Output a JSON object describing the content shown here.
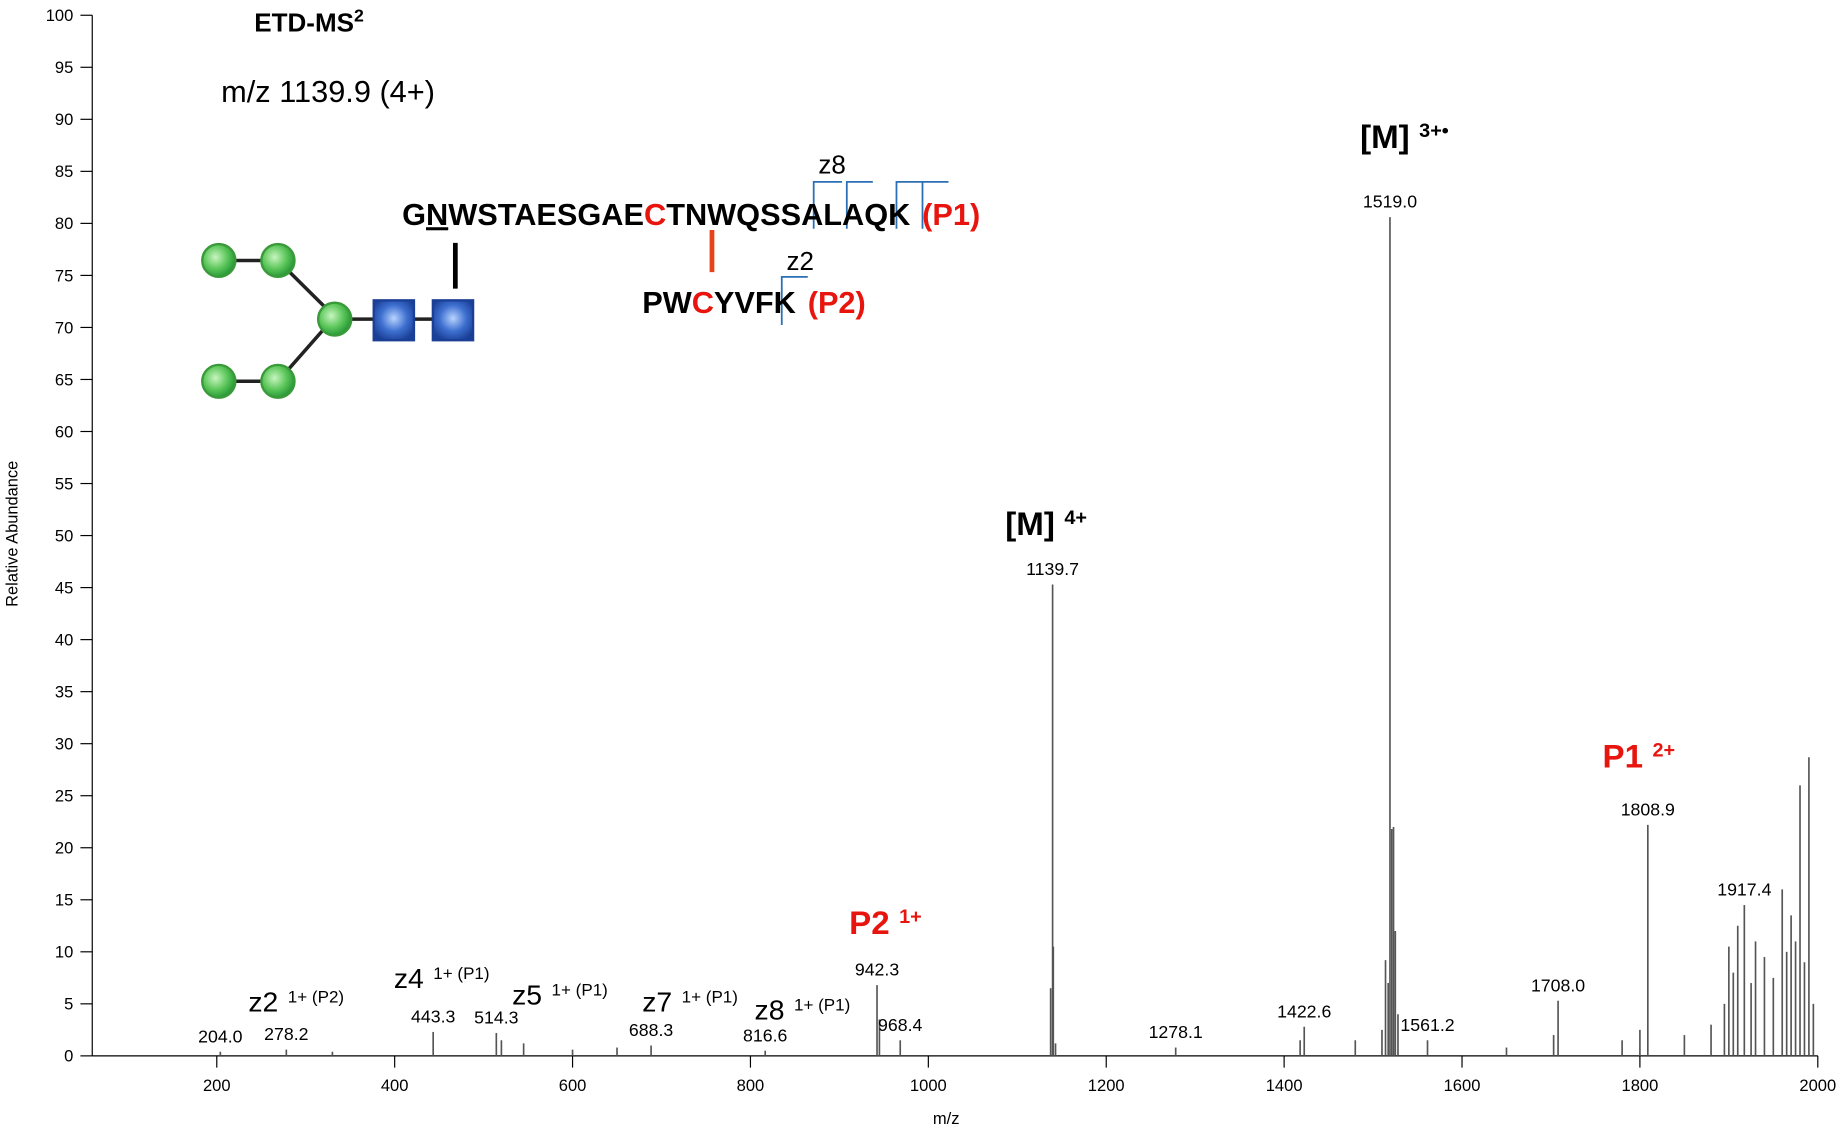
{
  "chart_data": {
    "type": "bar",
    "title": "ETD-MS",
    "title_sup": "2",
    "subtitle": "m/z 1139.9 (4+)",
    "x_label": "m/z",
    "y_label": "Relative Abundance",
    "xlim": [
      60,
      2000
    ],
    "ylim": [
      0,
      100
    ],
    "xticks": [
      200,
      400,
      600,
      800,
      1000,
      1200,
      1400,
      1600,
      1800,
      2000
    ],
    "yticks": [
      0,
      5,
      10,
      15,
      20,
      25,
      30,
      35,
      40,
      45,
      50,
      55,
      60,
      65,
      70,
      75,
      80,
      85,
      90,
      95,
      100
    ],
    "color": "#555555",
    "x": [
      204.0,
      278.2,
      330,
      443.3,
      514.3,
      520,
      545,
      600,
      650,
      688.3,
      816.6,
      942.3,
      945,
      968.4,
      1137.5,
      1139.7,
      1140.5,
      1143,
      1278.1,
      1418,
      1422.6,
      1480,
      1510,
      1514,
      1517,
      1519.0,
      1521,
      1523,
      1525,
      1528,
      1561.2,
      1650,
      1703,
      1708.0,
      1780,
      1800,
      1808.9,
      1850,
      1880,
      1895,
      1900,
      1905,
      1910,
      1917.4,
      1925,
      1930,
      1940,
      1950,
      1960,
      1965,
      1970,
      1975,
      1980,
      1985,
      1990,
      1995
    ],
    "values": [
      0.4,
      0.6,
      0.4,
      2.3,
      2.2,
      1.5,
      1.2,
      0.6,
      0.8,
      1.0,
      0.5,
      6.8,
      3.5,
      1.5,
      6.5,
      45.3,
      10.5,
      1.2,
      0.8,
      1.5,
      2.8,
      1.5,
      2.5,
      9.2,
      7,
      80.6,
      21.8,
      22,
      12,
      4,
      1.5,
      0.8,
      2,
      5.3,
      1.5,
      2.5,
      22.2,
      2,
      3,
      5,
      10.5,
      8,
      12.5,
      14.5,
      7,
      11,
      9.5,
      7.5,
      16,
      10,
      13.5,
      11,
      26,
      9,
      28.7,
      5
    ],
    "x_labels": [
      "204.0",
      "278.2",
      null,
      "443.3",
      "514.3",
      null,
      null,
      null,
      null,
      "688.3",
      "816.6",
      "942.3",
      null,
      "968.4",
      null,
      "1139.7",
      null,
      null,
      "1278.1",
      null,
      "1422.6",
      null,
      null,
      null,
      null,
      "1519.0",
      null,
      null,
      null,
      null,
      "1561.2",
      null,
      null,
      "1708.0",
      null,
      null,
      "1808.9",
      null,
      null,
      null,
      null,
      null,
      null,
      "1917.4",
      null,
      null,
      null,
      null,
      null,
      null,
      null,
      null,
      null,
      null,
      null,
      null
    ],
    "annotations": [
      {
        "text": "[M]",
        "sup": "4+",
        "color": "#000000"
      },
      {
        "text": "[M]",
        "sup": "3+•",
        "color": "#000000"
      },
      {
        "text": "P1",
        "sup": "2+",
        "color": "#e8150f"
      },
      {
        "text": "P2",
        "sup": "1+",
        "color": "#e8150f"
      },
      {
        "text": "z2",
        "sup": "1+ (P2)",
        "color": "#000000"
      },
      {
        "text": "z4",
        "sup": "1+ (P1)",
        "color": "#000000"
      },
      {
        "text": "z5",
        "sup": "1+ (P1)",
        "color": "#000000"
      },
      {
        "text": "z7",
        "sup": "1+ (P1)",
        "color": "#000000"
      },
      {
        "text": "z8",
        "sup": "1+ (P1)",
        "color": "#000000"
      }
    ],
    "peptides": [
      {
        "segments": [
          {
            "text": "G"
          },
          {
            "text": "N",
            "underline": true
          },
          {
            "text": "WSTAESGAE"
          },
          {
            "text": "C",
            "color": "#e8150f"
          },
          {
            "text": "TNWQSSALAQK"
          }
        ],
        "label": "(P1)"
      },
      {
        "segments": [
          {
            "text": "PW"
          },
          {
            "text": "C",
            "color": "#e8150f"
          },
          {
            "text": "YVFK"
          }
        ],
        "label": "(P2)"
      }
    ],
    "fragments": [
      "z8",
      "z2"
    ]
  }
}
